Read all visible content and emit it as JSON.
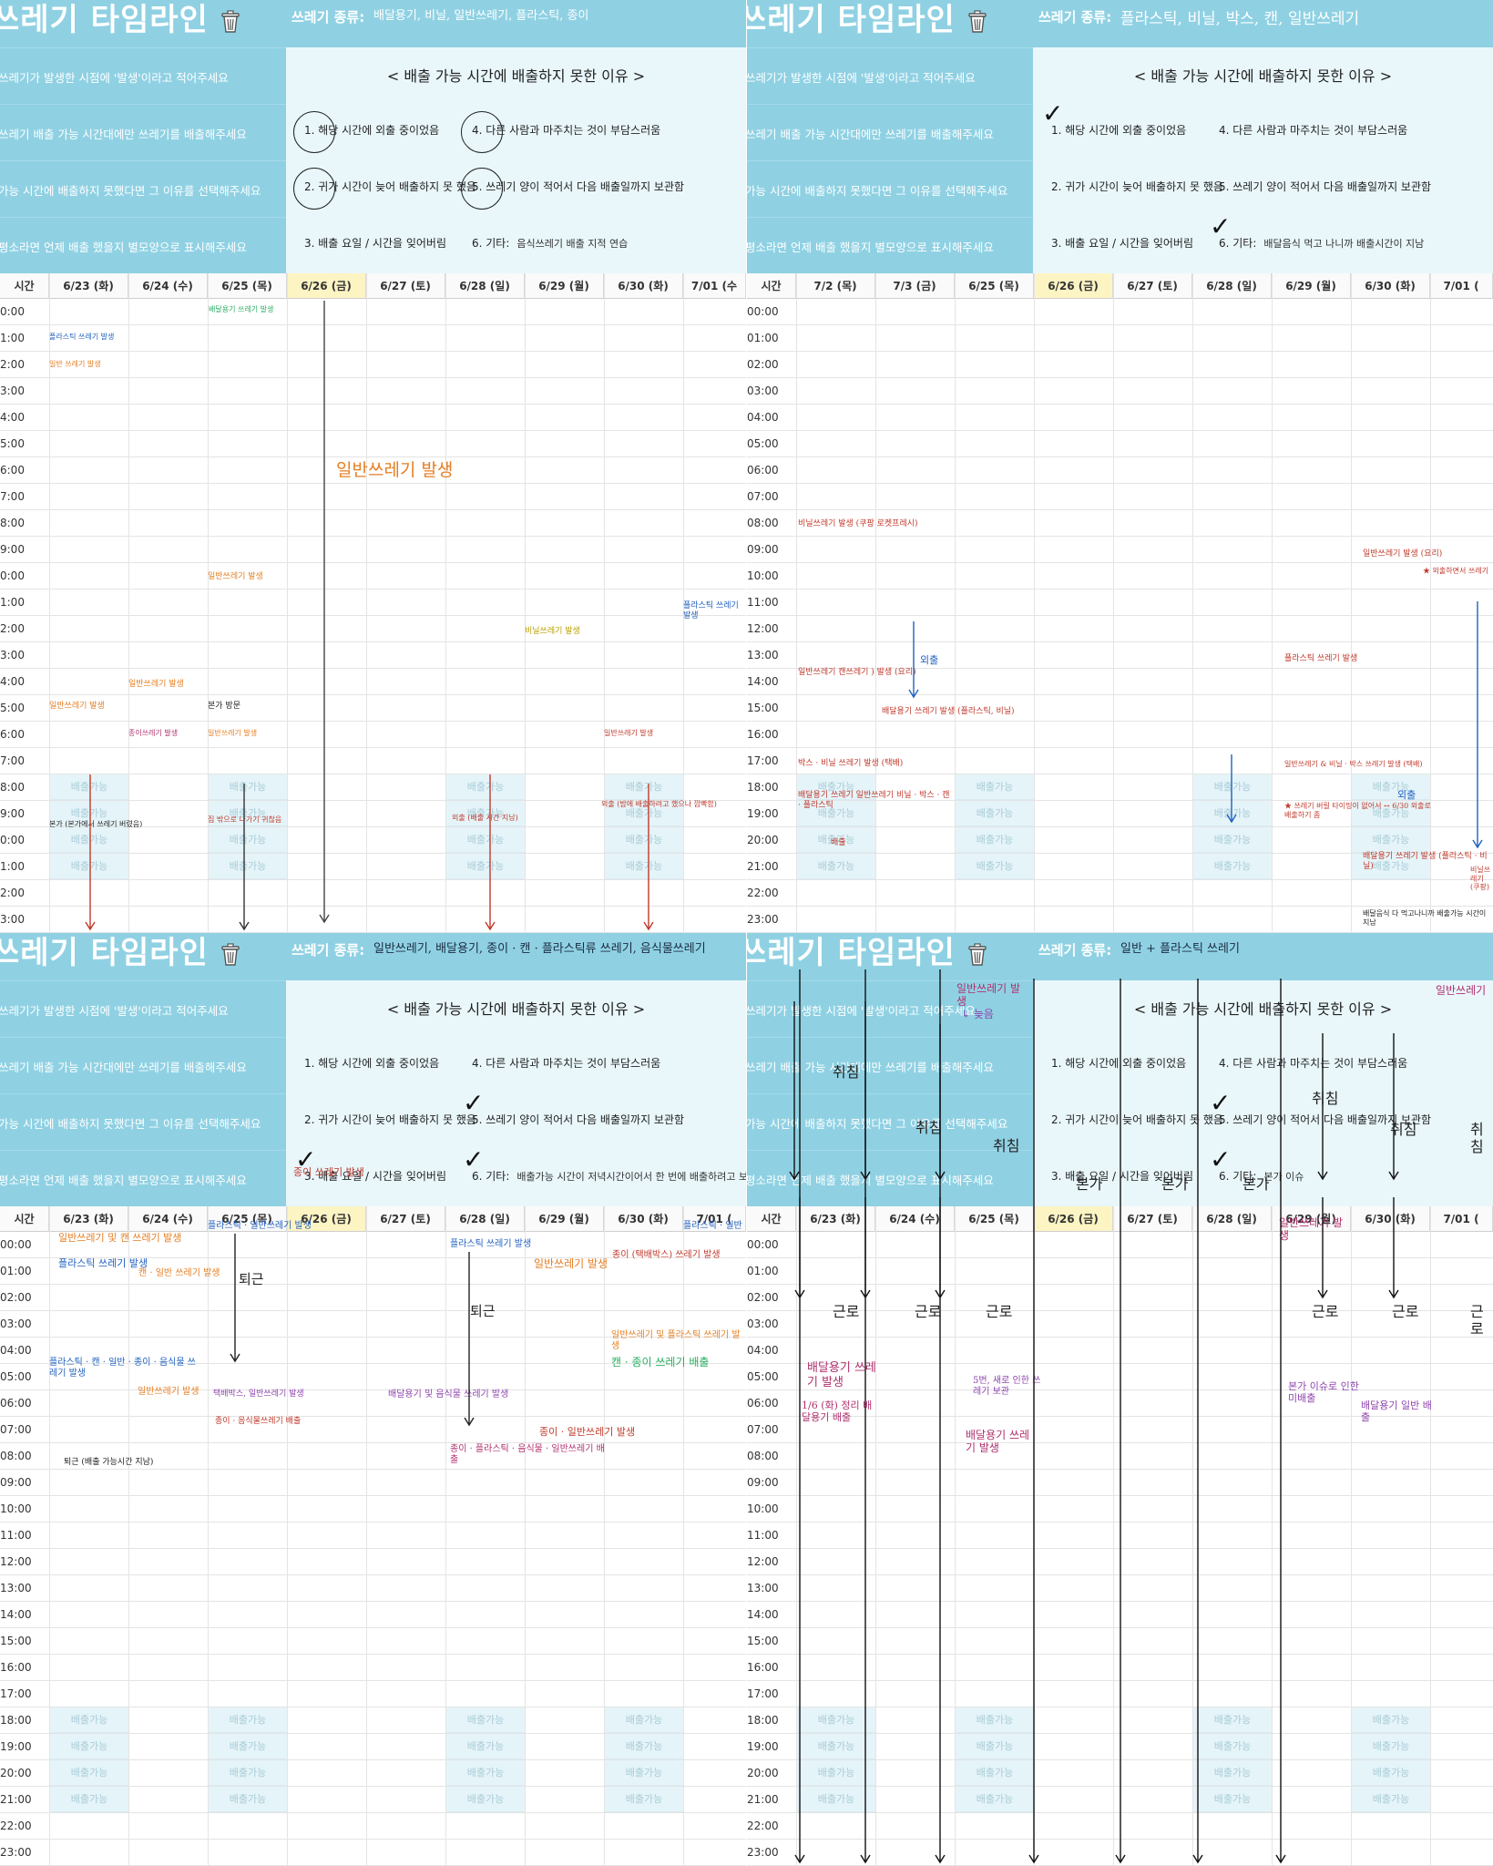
{
  "panels": [
    {
      "title": "쓰레기 타임라인",
      "instructions": [
        "쓰레기가 발생한 시점에 '발생'이라고 적어주세요",
        "쓰레기 배출 가능 시간대에만 쓰레기를 배출해주세요",
        "가능 시간에 배출하지 못했다면 그 이유를 선택해주세요",
        "평소라면 언제 배출 했을지 별모양으로 표시해주세요"
      ],
      "types_label": "쓰레기 종류:",
      "types_value": "배달용기, 비닐, 일반쓰레기, 플라스틱, 종이",
      "reasons_title": "< 배출 가능 시간에 배출하지 못한 이유 >",
      "reasons": [
        "1. 해당 시간에 외출 중이었음",
        "4. 다른 사람과 마주치는 것이 부담스러움",
        "2. 귀가 시간이 늦어 배출하지 못 했음",
        "5. 쓰레기 양이 적어서 다음 배출일까지 보관함",
        "3. 배출 요일 / 시간을 잊어버림",
        "6. 기타:"
      ],
      "reason_other_value": "음식쓰레기 배출 지적 연습",
      "headers": [
        "시간",
        "6/23 (화)",
        "6/24 (수)",
        "6/25 (목)",
        "6/26 (금)",
        "6/27 (토)",
        "6/28 (일)",
        "6/29 (월)",
        "6/30 (화)",
        "7/01 (수"
      ],
      "times": [
        "0:00",
        "1:00",
        "2:00",
        "3:00",
        "4:00",
        "5:00",
        "6:00",
        "7:00",
        "8:00",
        "9:00",
        "0:00",
        "1:00",
        "2:00",
        "3:00",
        "4:00",
        "5:00",
        "6:00",
        "7:00",
        "8:00",
        "9:00",
        "0:00",
        "1:00",
        "2:00",
        "3:00"
      ],
      "shade_text": "배출가능",
      "notes": [
        {
          "text": "배달용기 쓰레기 발생",
          "c": "g"
        },
        {
          "text": "배달용기 쓰레기 발생",
          "c": "g"
        },
        {
          "text": "플라스틱 쓰레기 발생",
          "c": "b"
        },
        {
          "text": "일반 쓰레기 발생",
          "c": "o"
        },
        {
          "text": "일반쓰레기 발생",
          "c": "o"
        },
        {
          "text": "일반쓰레기 발생",
          "c": "o"
        },
        {
          "text": "일반쓰레기 발생",
          "c": "o"
        },
        {
          "text": "본가 방문",
          "c": "k"
        },
        {
          "text": "일반쓰레기 발생",
          "c": "o"
        },
        {
          "text": "비닐쓰레기 발생",
          "c": "y"
        },
        {
          "text": "종이쓰레기 발생",
          "c": "m"
        },
        {
          "text": "일반쓰레기 발생",
          "c": "o"
        },
        {
          "text": "플라스틱 쓰레기 발생",
          "c": "b"
        },
        {
          "text": "일반쓰레기 발생",
          "c": "r"
        },
        {
          "text": "본가 (본가에서 쓰레기 버렸음)",
          "c": "k"
        },
        {
          "text": "집 밖으로 나가기 귀찮음",
          "c": "r"
        },
        {
          "text": "외출 (배출 시간 지남)",
          "c": "r"
        },
        {
          "text": "외출 (밤에 배출하려고 했으나 깜빡함)",
          "c": "r"
        }
      ]
    },
    {
      "title": "쓰레기 타임라인",
      "instructions": [
        "쓰레기가 발생한 시점에 '발생'이라고 적어주세요",
        "쓰레기 배출 가능 시간대에만 쓰레기를 배출해주세요",
        "가능 시간에 배출하지 못했다면 그 이유를 선택해주세요",
        "평소라면 언제 배출 했을지 별모양으로 표시해주세요"
      ],
      "types_label": "쓰레기 종류:",
      "types_value": "플라스틱, 비닐, 박스, 캔, 일반쓰레기",
      "reasons_title": "< 배출 가능 시간에 배출하지 못한 이유 >",
      "reasons": [
        "1. 해당 시간에 외출 중이었음",
        "4. 다른 사람과 마주치는 것이 부담스러움",
        "2. 귀가 시간이 늦어 배출하지 못 했음",
        "5. 쓰레기 양이 적어서 다음 배출일까지 보관함",
        "3. 배출 요일 / 시간을 잊어버림",
        "6. 기타:"
      ],
      "reason_other_value": "배달음식 먹고 나니까 배출시간이 지남",
      "headers": [
        "시간",
        "7/2 (목)",
        "7/3 (금)",
        "6/25 (목)",
        "6/26 (금)",
        "6/27 (토)",
        "6/28 (일)",
        "6/29 (월)",
        "6/30 (화)",
        "7/01 ("
      ],
      "times": [
        "00:00",
        "01:00",
        "02:00",
        "03:00",
        "04:00",
        "05:00",
        "06:00",
        "07:00",
        "08:00",
        "09:00",
        "10:00",
        "11:00",
        "12:00",
        "13:00",
        "14:00",
        "15:00",
        "16:00",
        "17:00",
        "18:00",
        "19:00",
        "20:00",
        "21:00",
        "22:00",
        "23:00"
      ],
      "shade_text": "배출가능",
      "notes": [
        {
          "text": "비닐쓰레기 발생 (쿠팡 로켓프레시)",
          "c": "r"
        },
        {
          "text": "일반쓰레기 캔쓰레기 ) 발생 (요리)",
          "c": "r"
        },
        {
          "text": "외출",
          "c": "b"
        },
        {
          "text": "배달용기 쓰레기 발생 (플라스틱, 비닐)",
          "c": "r"
        },
        {
          "text": "박스 · 비닐 쓰레기 발생 (택배)",
          "c": "r"
        },
        {
          "text": "배달용기 쓰레기 일반쓰레기 비닐 · 박스 · 캔 · 플라스틱",
          "c": "r"
        },
        {
          "text": "배출",
          "c": "r"
        },
        {
          "text": "플라스틱 쓰레기 발생",
          "c": "r"
        },
        {
          "text": "일반쓰레기 & 비닐 · 박스 쓰레기 발생 (택배)",
          "c": "r"
        },
        {
          "text": "★ 쓰레기 버릴 타이밍이 없어서 ↔ 6/30 외출로 배출하기 좀",
          "c": "r"
        },
        {
          "text": "외출",
          "c": "b"
        },
        {
          "text": "일반쓰레기 발생 (요리)",
          "c": "r"
        },
        {
          "text": "★ 외출하면서 쓰레기",
          "c": "r"
        },
        {
          "text": "배달용기 쓰레기 발생 (플라스틱 · 비닐)",
          "c": "r"
        },
        {
          "text": "배달음식 다 먹고나니까 배출가능 시간이 지남",
          "c": "k"
        },
        {
          "text": "비닐쓰레기 (쿠팡)",
          "c": "r"
        }
      ]
    },
    {
      "title": "쓰레기 타임라인",
      "instructions": [
        "쓰레기가 발생한 시점에 '발생'이라고 적어주세요",
        "쓰레기 배출 가능 시간대에만 쓰레기를 배출해주세요",
        "가능 시간에 배출하지 못했다면 그 이유를 선택해주세요",
        "평소라면 언제 배출 했을지 별모양으로 표시해주세요"
      ],
      "types_label": "쓰레기 종류:",
      "types_value": "일반쓰레기, 배달용기, 종이 · 캔 · 플라스틱류 쓰레기, 음식물쓰레기",
      "reasons_title": "< 배출 가능 시간에 배출하지 못한 이유 >",
      "reasons": [
        "1. 해당 시간에 외출 중이었음",
        "4. 다른 사람과 마주치는 것이 부담스러움",
        "2. 귀가 시간이 늦어 배출하지 못 했음",
        "5. 쓰레기 양이 적어서 다음 배출일까지 보관함",
        "3. 배출 요일 / 시간을 잊어버림",
        "6. 기타:"
      ],
      "reason_other_value": "배출가능 시간이 저녁시간이어서 한 번에 배출하려고 보니 쌓여 있음",
      "headers": [
        "시간",
        "6/23 (화)",
        "6/24 (수)",
        "6/25 (목)",
        "6/26 (금)",
        "6/27 (토)",
        "6/28 (일)",
        "6/29 (월)",
        "6/30 (화)",
        "7/01 ("
      ],
      "times": [
        "00:00",
        "01:00",
        "02:00",
        "03:00",
        "04:00",
        "05:00",
        "06:00",
        "07:00",
        "08:00",
        "09:00",
        "10:00",
        "11:00",
        "12:00",
        "13:00",
        "14:00",
        "15:00",
        "16:00",
        "17:00",
        "18:00",
        "19:00",
        "20:00",
        "21:00",
        "22:00",
        "23:00"
      ],
      "shade_text": "배출가능",
      "notes": [
        {
          "text": "종이 쓰레기 발생",
          "c": "r"
        },
        {
          "text": "일반쓰레기 및 캔 쓰레기 발생",
          "c": "o"
        },
        {
          "text": "플라스틱 쓰레기 발생",
          "c": "b"
        },
        {
          "text": "캔 · 일반 쓰레기 발생",
          "c": "o"
        },
        {
          "text": "플라스틱 · 일반쓰레기 발생",
          "c": "b"
        },
        {
          "text": "퇴근",
          "c": "k"
        },
        {
          "text": "플라스틱 쓰레기 발생",
          "c": "b"
        },
        {
          "text": "일반쓰레기 발생",
          "c": "o"
        },
        {
          "text": "종이 (택배박스) 쓰레기 발생",
          "c": "r"
        },
        {
          "text": "퇴근",
          "c": "k"
        },
        {
          "text": "일반쓰레기 및 플라스틱 쓰레기 발생",
          "c": "o"
        },
        {
          "text": "캔 · 종이 쓰레기 배출",
          "c": "g"
        },
        {
          "text": "플라스틱 · 캔 · 일반 · 종이 · 음식물 쓰레기 발생",
          "c": "b"
        },
        {
          "text": "일반쓰레기 발생",
          "c": "o"
        },
        {
          "text": "택배박스, 일반쓰레기 발생",
          "c": "p"
        },
        {
          "text": "종이 · 음식물쓰레기 배출",
          "c": "r"
        },
        {
          "text": "배달용기 및 음식물 쓰레기 발생",
          "c": "p"
        },
        {
          "text": "종이 · 일반쓰레기 발생",
          "c": "r"
        },
        {
          "text": "종이 · 플라스틱 · 음식물 · 일반쓰레기 배출",
          "c": "m"
        },
        {
          "text": "플라스틱 · 일반",
          "c": "b"
        },
        {
          "text": "퇴근 (배출 가능시간 지남)",
          "c": "k"
        }
      ]
    },
    {
      "title": "쓰레기 타임라인",
      "instructions": [
        "쓰레기가 발생한 시점에 '발생'이라고 적어주세요",
        "쓰레기 배출 가능 시간대에만 쓰레기를 배출해주세요",
        "가능 시간에 배출하지 못했다면 그 이유를 선택해주세요",
        "평소라면 언제 배출 했을지 별모양으로 표시해주세요"
      ],
      "types_label": "쓰레기 종류:",
      "types_value": "일반 + 플라스틱 쓰레기",
      "reasons_title": "< 배출 가능 시간에 배출하지 못한 이유 >",
      "reasons": [
        "1. 해당 시간에 외출 중이었음",
        "4. 다른 사람과 마주치는 것이 부담스러움",
        "2. 귀가 시간이 늦어 배출하지 못 했음",
        "5. 쓰레기 양이 적어서 다음 배출일까지 보관함",
        "3. 배출 요일 / 시간을 잊어버림",
        "6. 기타:"
      ],
      "reason_other_value": "본가 이슈",
      "headers": [
        "시간",
        "6/23 (화)",
        "6/24 (수)",
        "6/25 (목)",
        "6/26 (금)",
        "6/27 (토)",
        "6/28 (일)",
        "6/29 (월)",
        "6/30 (화)",
        "7/01 ("
      ],
      "times": [
        "00:00",
        "01:00",
        "02:00",
        "03:00",
        "04:00",
        "05:00",
        "06:00",
        "07:00",
        "08:00",
        "09:00",
        "10:00",
        "11:00",
        "12:00",
        "13:00",
        "14:00",
        "15:00",
        "16:00",
        "17:00",
        "18:00",
        "19:00",
        "20:00",
        "21:00",
        "22:00",
        "23:00"
      ],
      "shade_text": "배출가능",
      "notes": [
        {
          "text": "일반쓰레기 발생",
          "c": "m"
        },
        {
          "text": "↳ 늦음",
          "c": "p"
        },
        {
          "text": "취침",
          "c": "k"
        },
        {
          "text": "취침",
          "c": "k"
        },
        {
          "text": "취침",
          "c": "k"
        },
        {
          "text": "본가",
          "c": "k"
        },
        {
          "text": "본가",
          "c": "k"
        },
        {
          "text": "본가",
          "c": "k"
        },
        {
          "text": "취침",
          "c": "k"
        },
        {
          "text": "취침",
          "c": "k"
        },
        {
          "text": "취침",
          "c": "k"
        },
        {
          "text": "일반쓰레기 발생",
          "c": "m"
        },
        {
          "text": "근로",
          "c": "k"
        },
        {
          "text": "근로",
          "c": "k"
        },
        {
          "text": "근로",
          "c": "k"
        },
        {
          "text": "근로",
          "c": "k"
        },
        {
          "text": "근로",
          "c": "k"
        },
        {
          "text": "근로",
          "c": "k"
        },
        {
          "text": "배달용기 쓰레기 발생",
          "c": "m"
        },
        {
          "text": "1/6 (화) 정리 배달용기 배출",
          "c": "m"
        },
        {
          "text": "5번, 새로 인한 쓰레기 보관",
          "c": "p"
        },
        {
          "text": "배달용기 쓰레기 발생",
          "c": "m"
        },
        {
          "text": "본가 이슈로 인한 미배출",
          "c": "p"
        },
        {
          "text": "배달용기 일반 배출",
          "c": "p"
        },
        {
          "text": "일반쓰레기",
          "c": "m"
        }
      ]
    }
  ]
}
